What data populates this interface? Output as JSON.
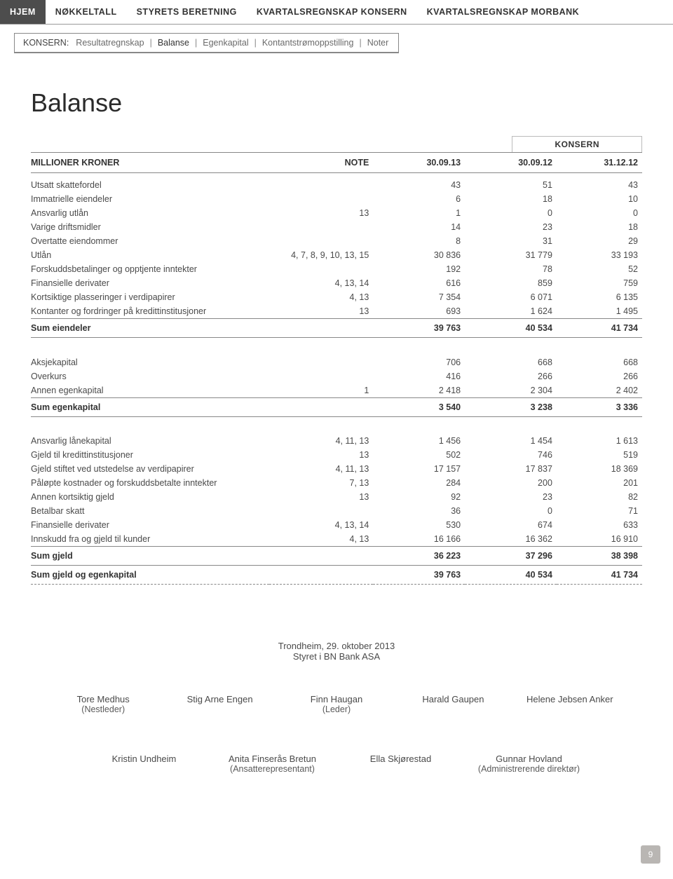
{
  "nav": {
    "tabs": [
      "HJEM",
      "NØKKELTALL",
      "STYRETS BERETNING",
      "KVARTALSREGNSKAP KONSERN",
      "KVARTALSREGNSKAP MORBANK"
    ]
  },
  "subnav": {
    "label": "KONSERN:",
    "items": [
      "Resultatregnskap",
      "Balanse",
      "Egenkapital",
      "Kontantstrømoppstilling",
      "Noter"
    ]
  },
  "title": "Balanse",
  "box_label": "KONSERN",
  "headers": {
    "c0": "MILLIONER KRONER",
    "c1": "NOTE",
    "c2": "30.09.13",
    "c3": "30.09.12",
    "c4": "31.12.12"
  },
  "sections": [
    {
      "rows": [
        {
          "l": "Utsatt skattefordel",
          "n": "",
          "v": [
            "43",
            "51",
            "43"
          ]
        },
        {
          "l": "Immatrielle eiendeler",
          "n": "",
          "v": [
            "6",
            "18",
            "10"
          ]
        },
        {
          "l": "Ansvarlig utlån",
          "n": "13",
          "v": [
            "1",
            "0",
            "0"
          ]
        },
        {
          "l": "Varige driftsmidler",
          "n": "",
          "v": [
            "14",
            "23",
            "18"
          ]
        },
        {
          "l": "Overtatte eiendommer",
          "n": "",
          "v": [
            "8",
            "31",
            "29"
          ]
        },
        {
          "l": "Utlån",
          "n": "4, 7, 8, 9, 10, 13, 15",
          "v": [
            "30 836",
            "31 779",
            "33 193"
          ]
        },
        {
          "l": "Forskuddsbetalinger og opptjente inntekter",
          "n": "",
          "v": [
            "192",
            "78",
            "52"
          ]
        },
        {
          "l": "Finansielle derivater",
          "n": "4, 13, 14",
          "v": [
            "616",
            "859",
            "759"
          ]
        },
        {
          "l": "Kortsiktige plasseringer i verdipapirer",
          "n": "4, 13",
          "v": [
            "7 354",
            "6 071",
            "6 135"
          ]
        },
        {
          "l": "Kontanter og fordringer på kredittinstitusjoner",
          "n": "13",
          "v": [
            "693",
            "1 624",
            "1 495"
          ]
        }
      ],
      "sum": {
        "l": "Sum eiendeler",
        "v": [
          "39 763",
          "40 534",
          "41 734"
        ]
      }
    },
    {
      "rows": [
        {
          "l": "Aksjekapital",
          "n": "",
          "v": [
            "706",
            "668",
            "668"
          ]
        },
        {
          "l": "Overkurs",
          "n": "",
          "v": [
            "416",
            "266",
            "266"
          ]
        },
        {
          "l": "Annen egenkapital",
          "n": "1",
          "v": [
            "2 418",
            "2 304",
            "2 402"
          ]
        }
      ],
      "sum": {
        "l": "Sum egenkapital",
        "v": [
          "3 540",
          "3 238",
          "3 336"
        ]
      }
    },
    {
      "rows": [
        {
          "l": "Ansvarlig lånekapital",
          "n": "4, 11, 13",
          "v": [
            "1 456",
            "1 454",
            "1 613"
          ]
        },
        {
          "l": "Gjeld til kredittinstitusjoner",
          "n": "13",
          "v": [
            "502",
            "746",
            "519"
          ]
        },
        {
          "l": "Gjeld stiftet ved utstedelse av verdipapirer",
          "n": "4, 11, 13",
          "v": [
            "17 157",
            "17 837",
            "18 369"
          ]
        },
        {
          "l": "Påløpte kostnader og forskuddsbetalte inntekter",
          "n": "7, 13",
          "v": [
            "284",
            "200",
            "201"
          ]
        },
        {
          "l": "Annen kortsiktig gjeld",
          "n": "13",
          "v": [
            "92",
            "23",
            "82"
          ]
        },
        {
          "l": "Betalbar skatt",
          "n": "",
          "v": [
            "36",
            "0",
            "71"
          ]
        },
        {
          "l": "Finansielle derivater",
          "n": "4, 13, 14",
          "v": [
            "530",
            "674",
            "633"
          ]
        },
        {
          "l": "Innskudd fra og gjeld til kunder",
          "n": "4, 13",
          "v": [
            "16 166",
            "16 362",
            "16 910"
          ]
        }
      ],
      "sum": {
        "l": "Sum gjeld",
        "v": [
          "36 223",
          "37 296",
          "38 398"
        ]
      }
    }
  ],
  "grand_sum": {
    "l": "Sum gjeld og egenkapital",
    "v": [
      "39 763",
      "40 534",
      "41 734"
    ]
  },
  "signing": {
    "place_date": "Trondheim, 29. oktober 2013",
    "board": "Styret i BN Bank ASA",
    "row1": [
      {
        "name": "Tore Medhus",
        "role": "(Nestleder)"
      },
      {
        "name": "Stig Arne Engen",
        "role": ""
      },
      {
        "name": "Finn Haugan",
        "role": "(Leder)"
      },
      {
        "name": "Harald Gaupen",
        "role": ""
      },
      {
        "name": "Helene Jebsen Anker",
        "role": ""
      }
    ],
    "row2": [
      {
        "name": "Kristin Undheim",
        "role": ""
      },
      {
        "name": "Anita Finserås Bretun",
        "role": "(Ansatterepresentant)"
      },
      {
        "name": "Ella Skjørestad",
        "role": ""
      },
      {
        "name": "Gunnar Hovland",
        "role": "(Administrerende direktør)"
      }
    ]
  },
  "page_number": "9"
}
